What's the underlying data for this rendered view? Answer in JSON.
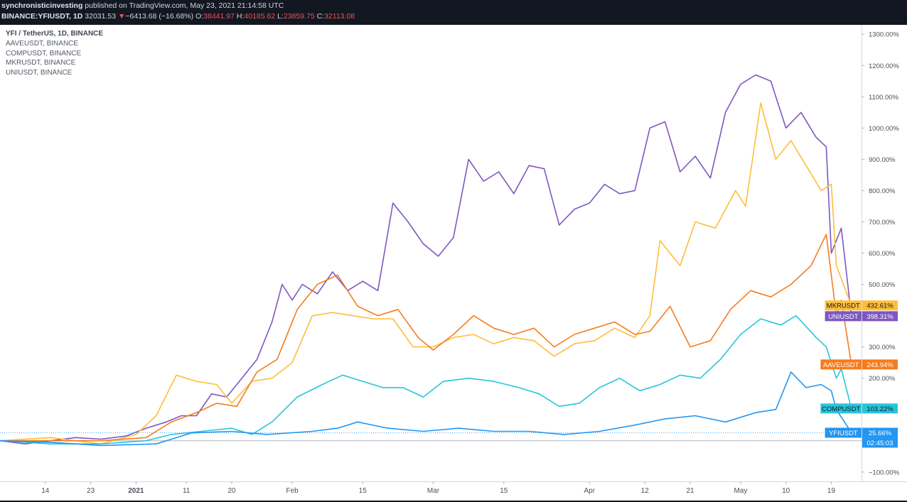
{
  "header": {
    "author": "synchronisticinvesting",
    "published": "published on TradingView.com, May 23, 2021 21:14:58 UTC",
    "symbol": "BINANCE:YFIUSDT, 1D",
    "last": "32031.53",
    "change_arrow": "▼",
    "change": "−6413.68 (−16.68%)",
    "o_label": "O:",
    "o": "38441.97",
    "h_label": "H:",
    "h": "40185.62",
    "l_label": "L:",
    "l": "23859.75",
    "c_label": "C:",
    "c": "32113.08"
  },
  "legend": [
    "YFI / TetherUS, 1D, BINANCE",
    "AAVEUSDT, BINANCE",
    "COMPUSDT, BINANCE",
    "MKRUSDT, BINANCE",
    "UNIUSDT, BINANCE"
  ],
  "countdown": "02:45:03",
  "chart_data": {
    "type": "line",
    "y_unit": "% change",
    "ylim": [
      -130,
      1330
    ],
    "y_ticks": [
      -100,
      200,
      300,
      400,
      500,
      600,
      700,
      800,
      900,
      1000,
      1100,
      1200,
      1300
    ],
    "y_tick_labels": [
      "−100.00%",
      "200.00%",
      "300.00%",
      "400.00%",
      "500.00%",
      "600.00%",
      "700.00%",
      "800.00%",
      "900.00%",
      "1000.00%",
      "1100.00%",
      "1200.00%",
      "1300.00%"
    ],
    "x_ticks": [
      {
        "date": "2020-12-14",
        "label": "14",
        "bold": false
      },
      {
        "date": "2020-12-23",
        "label": "23",
        "bold": false
      },
      {
        "date": "2021-01-01",
        "label": "2021",
        "bold": true
      },
      {
        "date": "2021-01-11",
        "label": "11",
        "bold": false
      },
      {
        "date": "2021-01-20",
        "label": "20",
        "bold": false
      },
      {
        "date": "2021-02-01",
        "label": "Feb",
        "bold": false
      },
      {
        "date": "2021-02-15",
        "label": "15",
        "bold": false
      },
      {
        "date": "2021-03-01",
        "label": "Mar",
        "bold": false
      },
      {
        "date": "2021-03-15",
        "label": "15",
        "bold": false
      },
      {
        "date": "2021-04-01",
        "label": "Apr",
        "bold": false
      },
      {
        "date": "2021-04-12",
        "label": "12",
        "bold": false
      },
      {
        "date": "2021-04-21",
        "label": "21",
        "bold": false
      },
      {
        "date": "2021-05-01",
        "label": "May",
        "bold": false
      },
      {
        "date": "2021-05-10",
        "label": "10",
        "bold": false
      },
      {
        "date": "2021-05-19",
        "label": "19",
        "bold": false
      }
    ],
    "series": [
      {
        "name": "UNIUSDT",
        "color": "#7e57c2",
        "last_label": "398.31%",
        "points": [
          [
            "2020-12-05",
            0
          ],
          [
            "2020-12-10",
            -10
          ],
          [
            "2020-12-15",
            0
          ],
          [
            "2020-12-20",
            10
          ],
          [
            "2020-12-25",
            5
          ],
          [
            "2020-12-30",
            15
          ],
          [
            "2021-01-03",
            40
          ],
          [
            "2021-01-07",
            60
          ],
          [
            "2021-01-10",
            80
          ],
          [
            "2021-01-13",
            80
          ],
          [
            "2021-01-16",
            150
          ],
          [
            "2021-01-19",
            140
          ],
          [
            "2021-01-22",
            200
          ],
          [
            "2021-01-25",
            260
          ],
          [
            "2021-01-28",
            380
          ],
          [
            "2021-01-30",
            500
          ],
          [
            "2021-02-01",
            450
          ],
          [
            "2021-02-03",
            500
          ],
          [
            "2021-02-06",
            470
          ],
          [
            "2021-02-09",
            540
          ],
          [
            "2021-02-12",
            480
          ],
          [
            "2021-02-15",
            510
          ],
          [
            "2021-02-18",
            480
          ],
          [
            "2021-02-21",
            760
          ],
          [
            "2021-02-24",
            700
          ],
          [
            "2021-02-27",
            630
          ],
          [
            "2021-03-02",
            590
          ],
          [
            "2021-03-05",
            650
          ],
          [
            "2021-03-08",
            900
          ],
          [
            "2021-03-11",
            830
          ],
          [
            "2021-03-14",
            860
          ],
          [
            "2021-03-17",
            790
          ],
          [
            "2021-03-20",
            880
          ],
          [
            "2021-03-23",
            870
          ],
          [
            "2021-03-26",
            690
          ],
          [
            "2021-03-29",
            740
          ],
          [
            "2021-04-01",
            760
          ],
          [
            "2021-04-04",
            820
          ],
          [
            "2021-04-07",
            790
          ],
          [
            "2021-04-10",
            800
          ],
          [
            "2021-04-13",
            1000
          ],
          [
            "2021-04-16",
            1020
          ],
          [
            "2021-04-19",
            860
          ],
          [
            "2021-04-22",
            910
          ],
          [
            "2021-04-25",
            840
          ],
          [
            "2021-04-28",
            1050
          ],
          [
            "2021-05-01",
            1140
          ],
          [
            "2021-05-04",
            1170
          ],
          [
            "2021-05-07",
            1150
          ],
          [
            "2021-05-10",
            1000
          ],
          [
            "2021-05-13",
            1050
          ],
          [
            "2021-05-16",
            970
          ],
          [
            "2021-05-18",
            940
          ],
          [
            "2021-05-19",
            600
          ],
          [
            "2021-05-21",
            680
          ],
          [
            "2021-05-23",
            398.31
          ]
        ]
      },
      {
        "name": "MKRUSDT",
        "color": "#fdbe3b",
        "last_label": "432.61%",
        "points": [
          [
            "2020-12-05",
            0
          ],
          [
            "2020-12-15",
            10
          ],
          [
            "2020-12-25",
            -10
          ],
          [
            "2021-01-01",
            20
          ],
          [
            "2021-01-05",
            80
          ],
          [
            "2021-01-09",
            210
          ],
          [
            "2021-01-13",
            190
          ],
          [
            "2021-01-17",
            180
          ],
          [
            "2021-01-20",
            120
          ],
          [
            "2021-01-24",
            190
          ],
          [
            "2021-01-28",
            200
          ],
          [
            "2021-02-01",
            250
          ],
          [
            "2021-02-05",
            400
          ],
          [
            "2021-02-09",
            410
          ],
          [
            "2021-02-13",
            400
          ],
          [
            "2021-02-17",
            390
          ],
          [
            "2021-02-21",
            390
          ],
          [
            "2021-02-25",
            300
          ],
          [
            "2021-03-01",
            300
          ],
          [
            "2021-03-05",
            330
          ],
          [
            "2021-03-09",
            340
          ],
          [
            "2021-03-13",
            310
          ],
          [
            "2021-03-17",
            330
          ],
          [
            "2021-03-21",
            320
          ],
          [
            "2021-03-25",
            270
          ],
          [
            "2021-03-29",
            310
          ],
          [
            "2021-04-02",
            320
          ],
          [
            "2021-04-06",
            360
          ],
          [
            "2021-04-10",
            330
          ],
          [
            "2021-04-13",
            400
          ],
          [
            "2021-04-15",
            640
          ],
          [
            "2021-04-19",
            560
          ],
          [
            "2021-04-22",
            700
          ],
          [
            "2021-04-26",
            680
          ],
          [
            "2021-04-30",
            800
          ],
          [
            "2021-05-02",
            750
          ],
          [
            "2021-05-05",
            1080
          ],
          [
            "2021-05-08",
            900
          ],
          [
            "2021-05-11",
            960
          ],
          [
            "2021-05-14",
            880
          ],
          [
            "2021-05-17",
            800
          ],
          [
            "2021-05-19",
            820
          ],
          [
            "2021-05-20",
            560
          ],
          [
            "2021-05-23",
            432.61
          ]
        ]
      },
      {
        "name": "AAVEUSDT",
        "color": "#f57c1f",
        "last_label": "243.94%",
        "points": [
          [
            "2020-12-05",
            0
          ],
          [
            "2020-12-15",
            0
          ],
          [
            "2020-12-25",
            0
          ],
          [
            "2021-01-03",
            10
          ],
          [
            "2021-01-08",
            60
          ],
          [
            "2021-01-13",
            90
          ],
          [
            "2021-01-17",
            120
          ],
          [
            "2021-01-21",
            110
          ],
          [
            "2021-01-25",
            220
          ],
          [
            "2021-01-29",
            260
          ],
          [
            "2021-02-02",
            420
          ],
          [
            "2021-02-06",
            500
          ],
          [
            "2021-02-10",
            530
          ],
          [
            "2021-02-14",
            430
          ],
          [
            "2021-02-18",
            400
          ],
          [
            "2021-02-22",
            420
          ],
          [
            "2021-02-26",
            330
          ],
          [
            "2021-03-01",
            290
          ],
          [
            "2021-03-05",
            340
          ],
          [
            "2021-03-09",
            400
          ],
          [
            "2021-03-13",
            360
          ],
          [
            "2021-03-17",
            340
          ],
          [
            "2021-03-21",
            360
          ],
          [
            "2021-03-25",
            300
          ],
          [
            "2021-03-29",
            340
          ],
          [
            "2021-04-02",
            360
          ],
          [
            "2021-04-06",
            380
          ],
          [
            "2021-04-10",
            340
          ],
          [
            "2021-04-13",
            350
          ],
          [
            "2021-04-17",
            430
          ],
          [
            "2021-04-21",
            300
          ],
          [
            "2021-04-25",
            320
          ],
          [
            "2021-04-29",
            420
          ],
          [
            "2021-05-03",
            480
          ],
          [
            "2021-05-07",
            460
          ],
          [
            "2021-05-11",
            500
          ],
          [
            "2021-05-15",
            560
          ],
          [
            "2021-05-18",
            660
          ],
          [
            "2021-05-20",
            400
          ],
          [
            "2021-05-21",
            450
          ],
          [
            "2021-05-23",
            243.94
          ]
        ]
      },
      {
        "name": "COMPUSDT",
        "color": "#26c6da",
        "last_label": "103.22%",
        "points": [
          [
            "2020-12-05",
            0
          ],
          [
            "2020-12-15",
            -10
          ],
          [
            "2020-12-25",
            -10
          ],
          [
            "2021-01-03",
            0
          ],
          [
            "2021-01-08",
            20
          ],
          [
            "2021-01-14",
            30
          ],
          [
            "2021-01-20",
            40
          ],
          [
            "2021-01-24",
            20
          ],
          [
            "2021-01-28",
            60
          ],
          [
            "2021-02-02",
            140
          ],
          [
            "2021-02-07",
            180
          ],
          [
            "2021-02-11",
            210
          ],
          [
            "2021-02-15",
            190
          ],
          [
            "2021-02-19",
            170
          ],
          [
            "2021-02-23",
            170
          ],
          [
            "2021-02-27",
            140
          ],
          [
            "2021-03-03",
            190
          ],
          [
            "2021-03-08",
            200
          ],
          [
            "2021-03-13",
            190
          ],
          [
            "2021-03-18",
            170
          ],
          [
            "2021-03-22",
            150
          ],
          [
            "2021-03-26",
            110
          ],
          [
            "2021-03-30",
            120
          ],
          [
            "2021-04-03",
            170
          ],
          [
            "2021-04-07",
            200
          ],
          [
            "2021-04-11",
            160
          ],
          [
            "2021-04-15",
            180
          ],
          [
            "2021-04-19",
            210
          ],
          [
            "2021-04-23",
            200
          ],
          [
            "2021-04-27",
            260
          ],
          [
            "2021-05-01",
            340
          ],
          [
            "2021-05-05",
            390
          ],
          [
            "2021-05-09",
            370
          ],
          [
            "2021-05-12",
            400
          ],
          [
            "2021-05-16",
            330
          ],
          [
            "2021-05-18",
            300
          ],
          [
            "2021-05-20",
            200
          ],
          [
            "2021-05-21",
            230
          ],
          [
            "2021-05-23",
            103.22
          ]
        ]
      },
      {
        "name": "YFIUSDT",
        "color": "#2196f3",
        "last_label": "25.66%",
        "points": [
          [
            "2020-12-05",
            0
          ],
          [
            "2020-12-15",
            -5
          ],
          [
            "2020-12-25",
            -15
          ],
          [
            "2021-01-05",
            -10
          ],
          [
            "2021-01-12",
            25
          ],
          [
            "2021-01-20",
            30
          ],
          [
            "2021-01-27",
            20
          ],
          [
            "2021-02-05",
            30
          ],
          [
            "2021-02-10",
            40
          ],
          [
            "2021-02-14",
            60
          ],
          [
            "2021-02-20",
            40
          ],
          [
            "2021-02-27",
            30
          ],
          [
            "2021-03-06",
            40
          ],
          [
            "2021-03-13",
            30
          ],
          [
            "2021-03-20",
            30
          ],
          [
            "2021-03-27",
            20
          ],
          [
            "2021-04-03",
            30
          ],
          [
            "2021-04-10",
            50
          ],
          [
            "2021-04-16",
            70
          ],
          [
            "2021-04-22",
            80
          ],
          [
            "2021-04-28",
            60
          ],
          [
            "2021-05-04",
            90
          ],
          [
            "2021-05-08",
            100
          ],
          [
            "2021-05-11",
            220
          ],
          [
            "2021-05-14",
            170
          ],
          [
            "2021-05-17",
            180
          ],
          [
            "2021-05-19",
            160
          ],
          [
            "2021-05-20",
            100
          ],
          [
            "2021-05-23",
            25.66
          ]
        ]
      }
    ]
  }
}
